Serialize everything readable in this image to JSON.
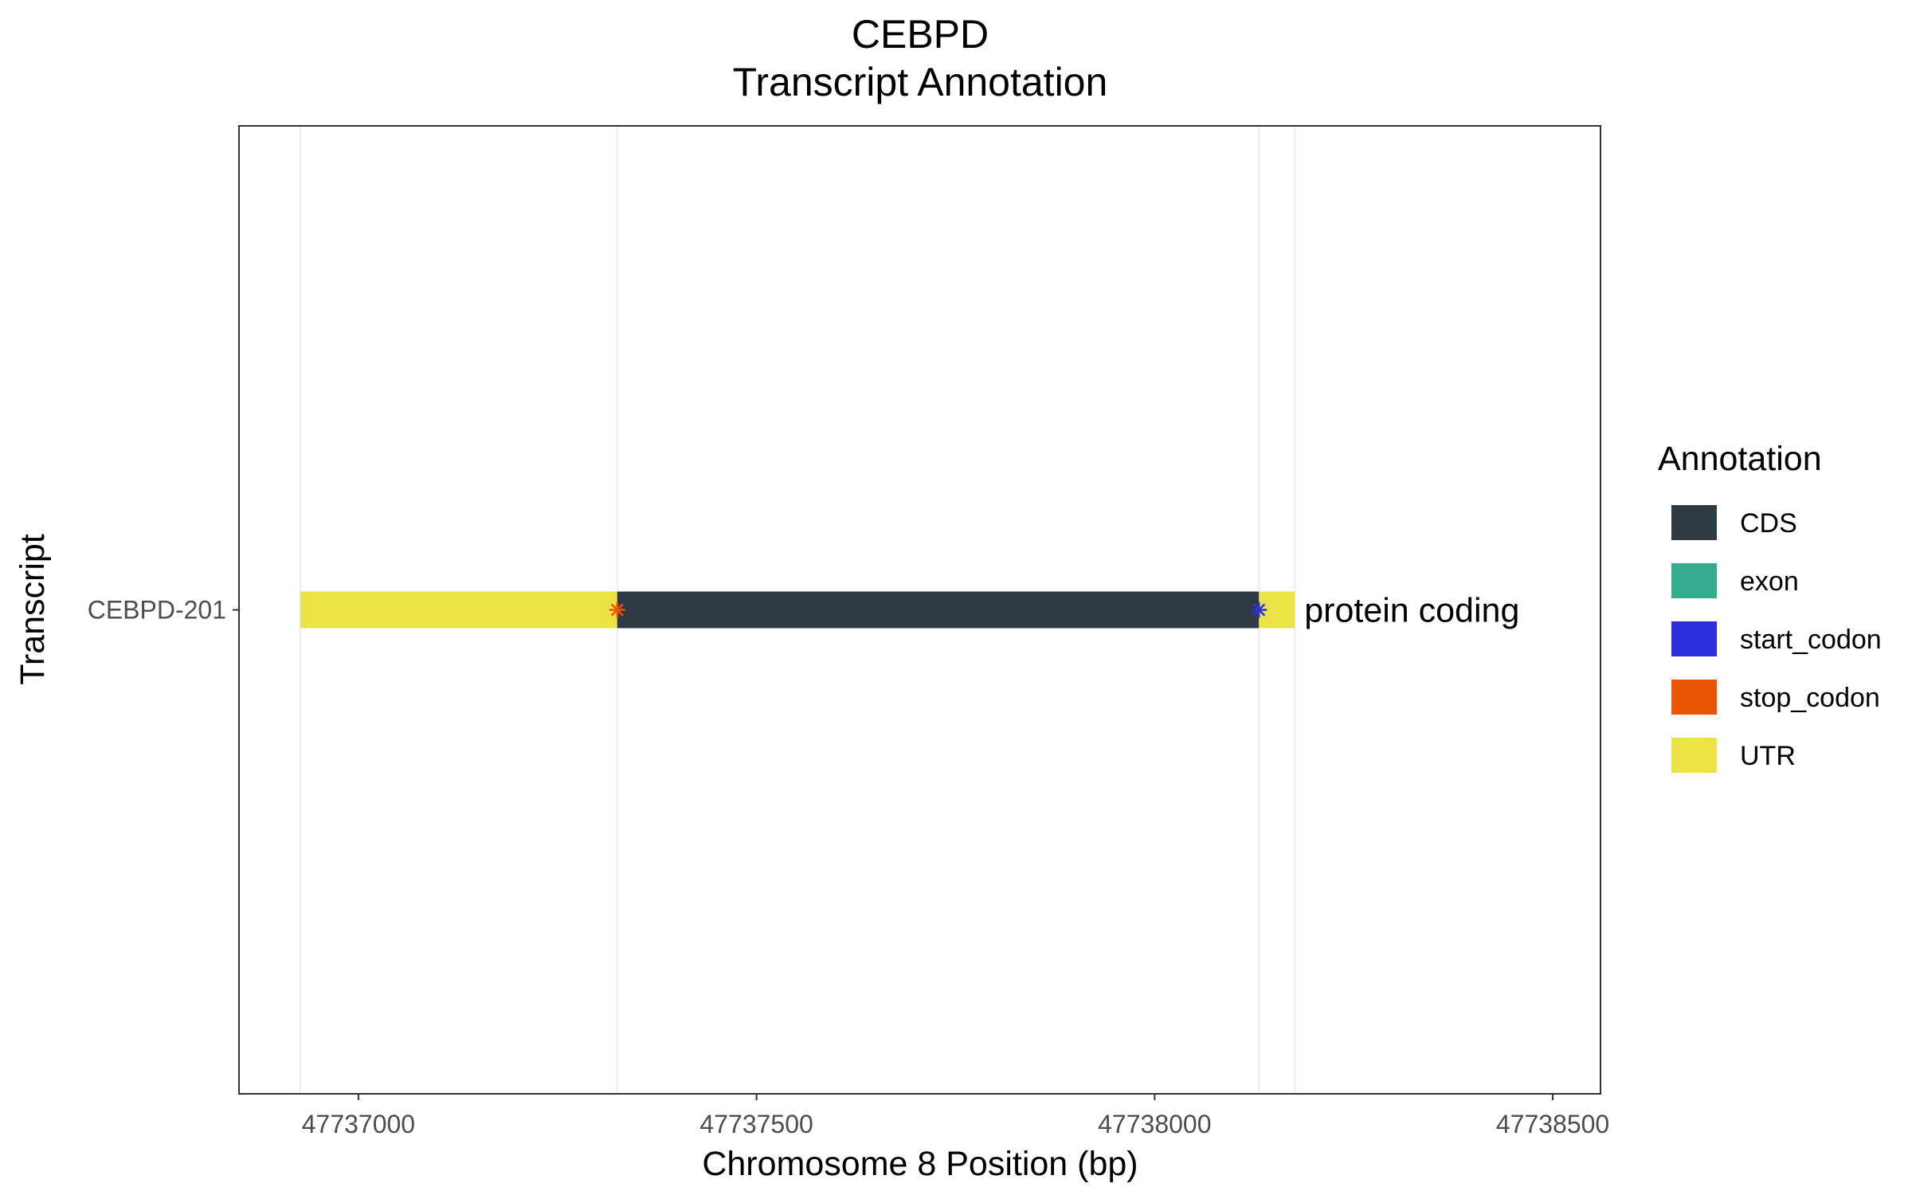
{
  "chart_data": {
    "type": "transcript_annotation",
    "title": "CEBPD",
    "subtitle": "Transcript Annotation",
    "xlabel": "Chromosome 8 Position (bp)",
    "ylabel": "Transcript",
    "xlim": [
      47736850,
      47738560
    ],
    "x_ticks": [
      47737000,
      47737500,
      47738000,
      47738500
    ],
    "x_tick_labels": [
      "47737000",
      "47737500",
      "47738000",
      "47738500"
    ],
    "transcripts": [
      "CEBPD-201"
    ],
    "grid": true,
    "legend": {
      "title": "Annotation",
      "position": "right",
      "items": [
        {
          "label": "CDS",
          "color": "#2e3b44"
        },
        {
          "label": "exon",
          "color": "#35ab8f"
        },
        {
          "label": "start_codon",
          "color": "#2b2fdc"
        },
        {
          "label": "stop_codon",
          "color": "#ea5506"
        },
        {
          "label": "UTR",
          "color": "#ebe245"
        }
      ]
    },
    "features": [
      {
        "type": "UTR",
        "transcript": "CEBPD-201",
        "start": 47736927,
        "end": 47737325
      },
      {
        "type": "CDS",
        "transcript": "CEBPD-201",
        "start": 47737325,
        "end": 47738131
      },
      {
        "type": "UTR",
        "transcript": "CEBPD-201",
        "start": 47738131,
        "end": 47738176
      }
    ],
    "codons": [
      {
        "type": "stop_codon",
        "transcript": "CEBPD-201",
        "position": 47737325
      },
      {
        "type": "start_codon",
        "transcript": "CEBPD-201",
        "position": 47738131
      }
    ],
    "annotations": [
      {
        "transcript": "CEBPD-201",
        "text": "protein coding",
        "position": 47738176
      }
    ]
  }
}
